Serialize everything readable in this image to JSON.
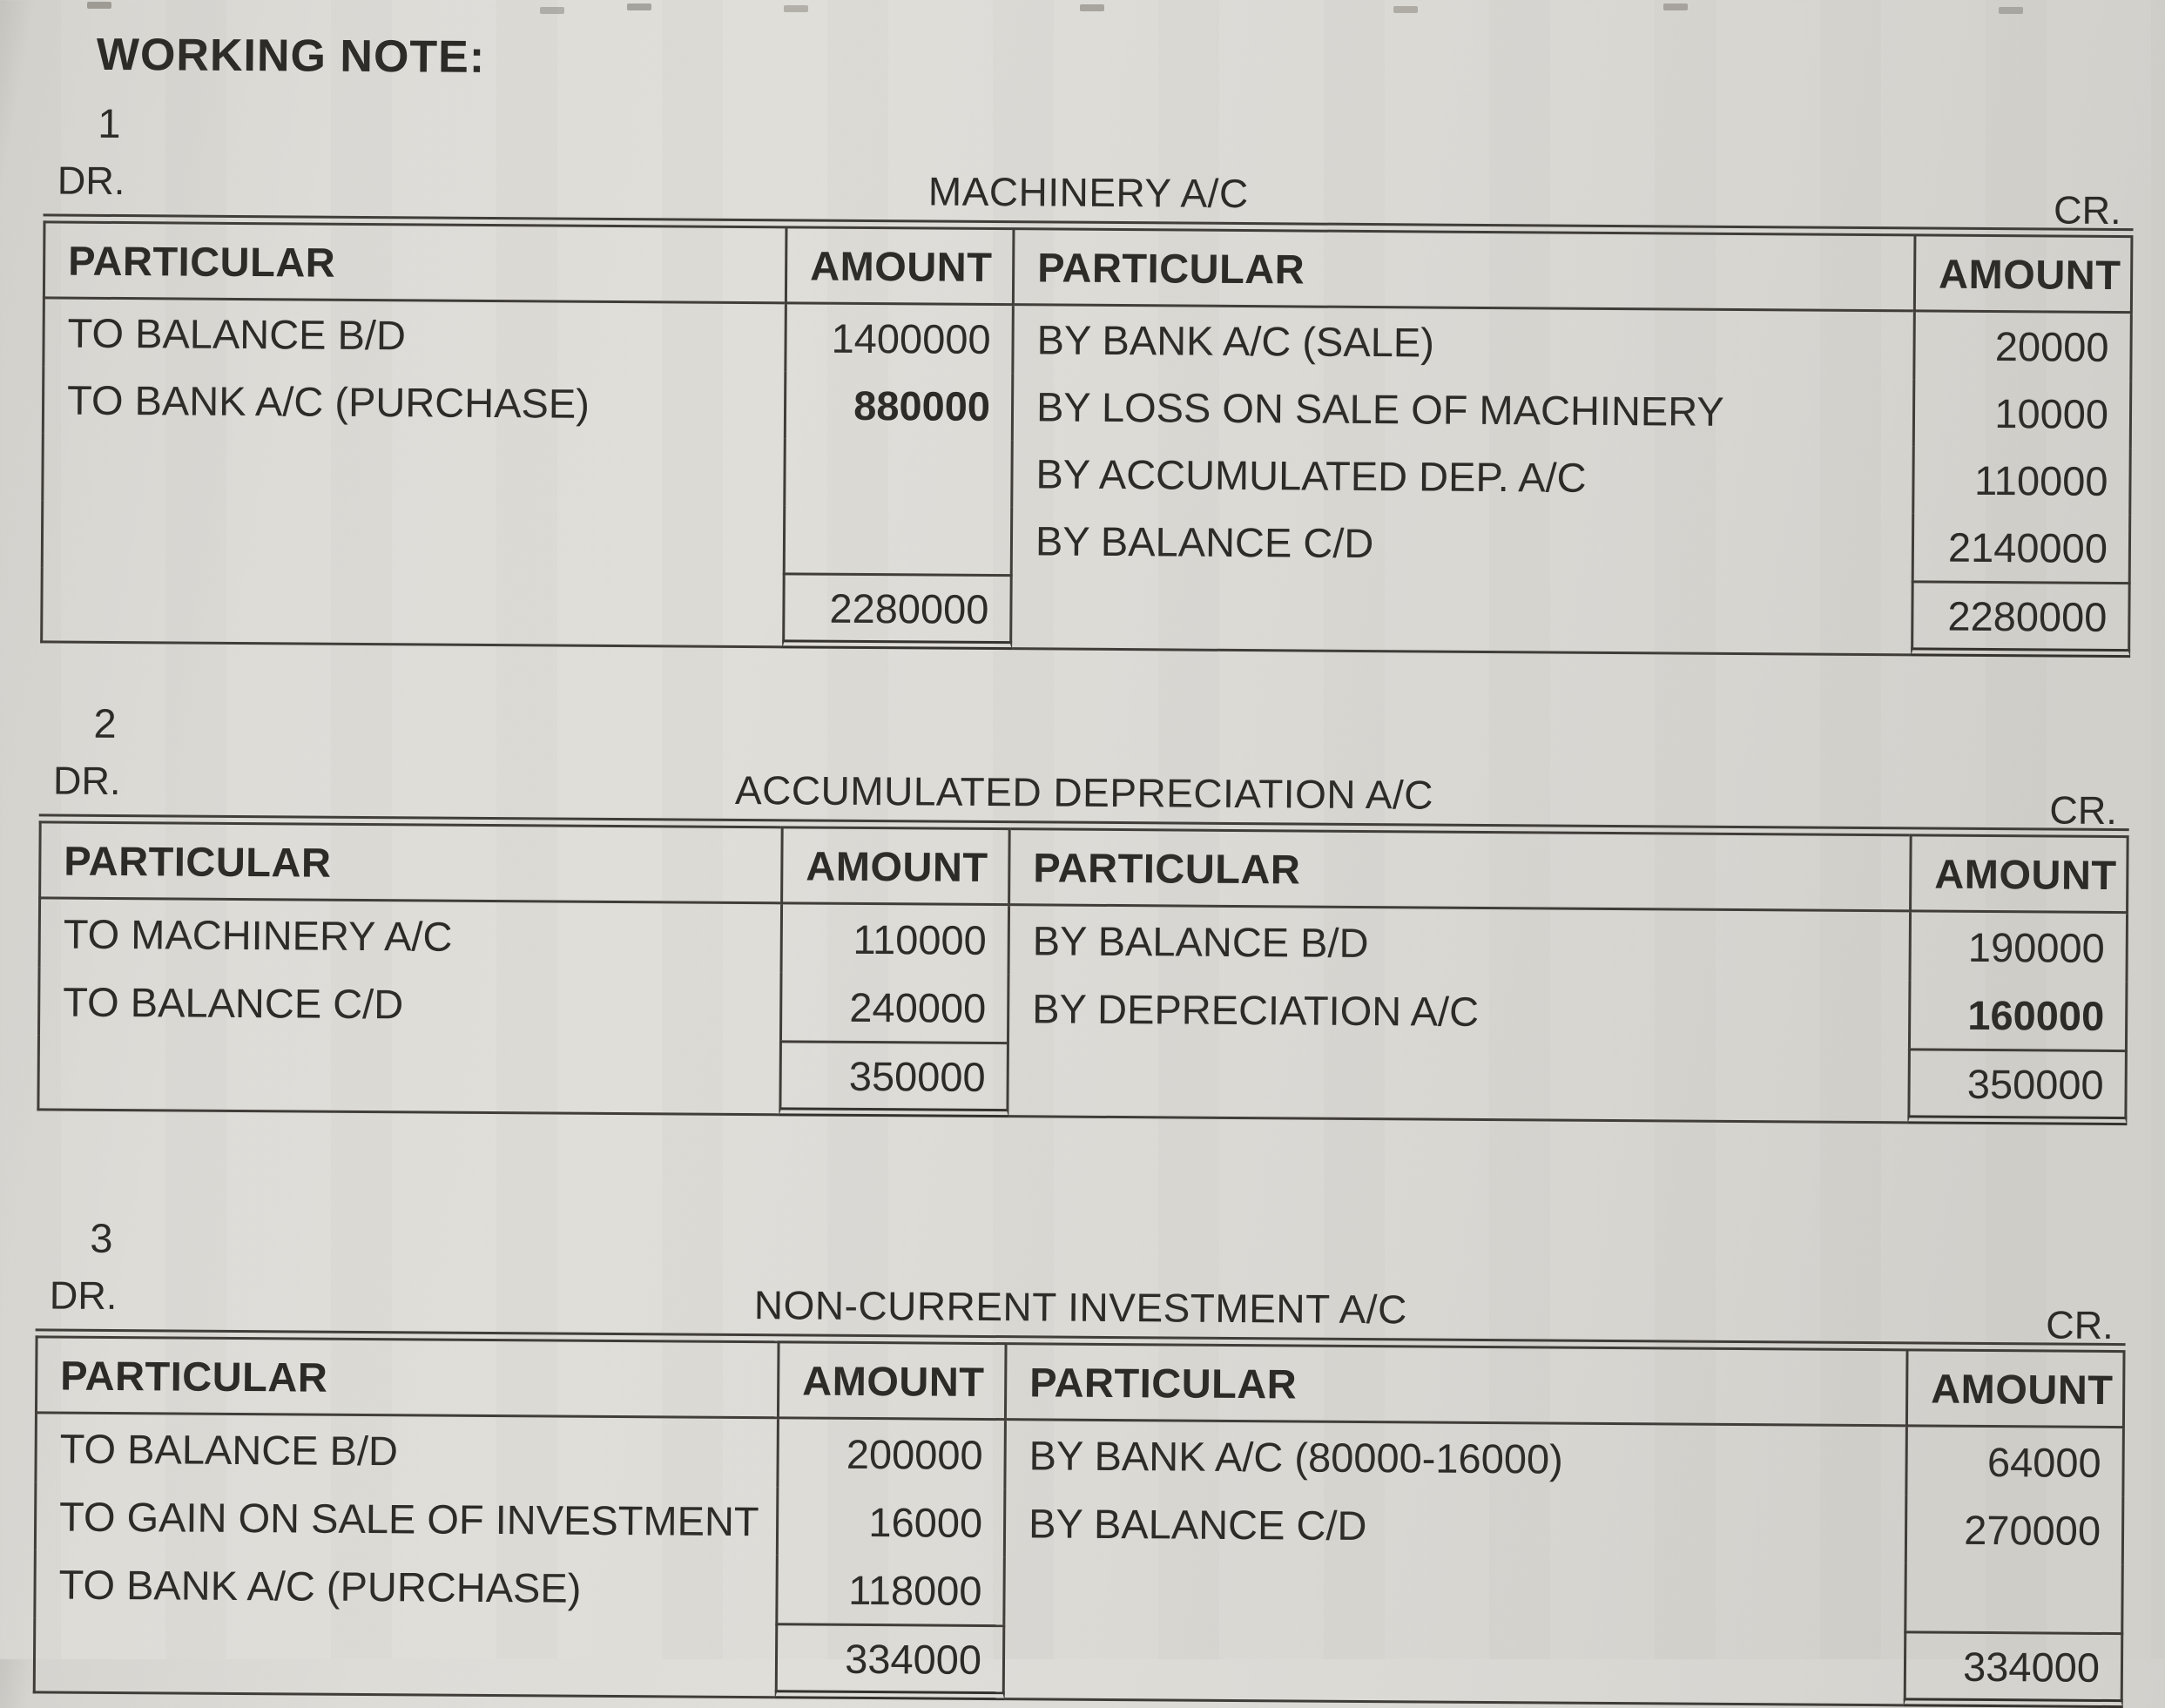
{
  "page": {
    "heading": "WORKING NOTE:"
  },
  "colors": {
    "paper": "#dedcd7",
    "ink": "#2d2b28",
    "rule": "#403d39"
  },
  "accounts": [
    {
      "number": "1",
      "dr": "DR.",
      "cr": "CR.",
      "title": "MACHINERY A/C",
      "headers": {
        "p1": "PARTICULAR",
        "a1": "AMOUNT",
        "p2": "PARTICULAR",
        "a2": "AMOUNT"
      },
      "rows": [
        {
          "p1": "TO BALANCE B/D",
          "a1": "1400000",
          "p2": "BY BANK A/C (SALE)",
          "a2": "20000"
        },
        {
          "p1": "TO BANK A/C (PURCHASE)",
          "a1": "880000",
          "p2": "BY LOSS ON SALE OF MACHINERY",
          "a2": "10000"
        },
        {
          "p1": "",
          "a1": "",
          "p2": "BY ACCUMULATED DEP. A/C",
          "a2": "110000"
        },
        {
          "p1": "",
          "a1": "",
          "p2": "BY BALANCE C/D",
          "a2": "2140000"
        }
      ],
      "total_left": "2280000",
      "total_right": "2280000"
    },
    {
      "number": "2",
      "dr": "DR.",
      "cr": "CR.",
      "title": "ACCUMULATED DEPRECIATION A/C",
      "headers": {
        "p1": "PARTICULAR",
        "a1": "AMOUNT",
        "p2": "PARTICULAR",
        "a2": "AMOUNT"
      },
      "rows": [
        {
          "p1": "TO MACHINERY A/C",
          "a1": "110000",
          "p2": "BY BALANCE B/D",
          "a2": "190000"
        },
        {
          "p1": "TO BALANCE C/D",
          "a1": "240000",
          "p2": "BY DEPRECIATION A/C",
          "a2": "160000"
        }
      ],
      "total_left": "350000",
      "total_right": "350000"
    },
    {
      "number": "3",
      "dr": "DR.",
      "cr": "CR.",
      "title": "NON-CURRENT INVESTMENT A/C",
      "headers": {
        "p1": "PARTICULAR",
        "a1": "AMOUNT",
        "p2": "PARTICULAR",
        "a2": "AMOUNT"
      },
      "rows": [
        {
          "p1": "TO BALANCE B/D",
          "a1": "200000",
          "p2": "BY BANK A/C (80000-16000)",
          "a2": "64000"
        },
        {
          "p1": "TO GAIN ON SALE OF INVESTMENT",
          "a1": "16000",
          "p2": "BY BALANCE C/D",
          "a2": "270000"
        },
        {
          "p1": "TO BANK A/C (PURCHASE)",
          "a1": "118000",
          "p2": "",
          "a2": ""
        }
      ],
      "total_left": "334000",
      "total_right": "334000"
    }
  ]
}
